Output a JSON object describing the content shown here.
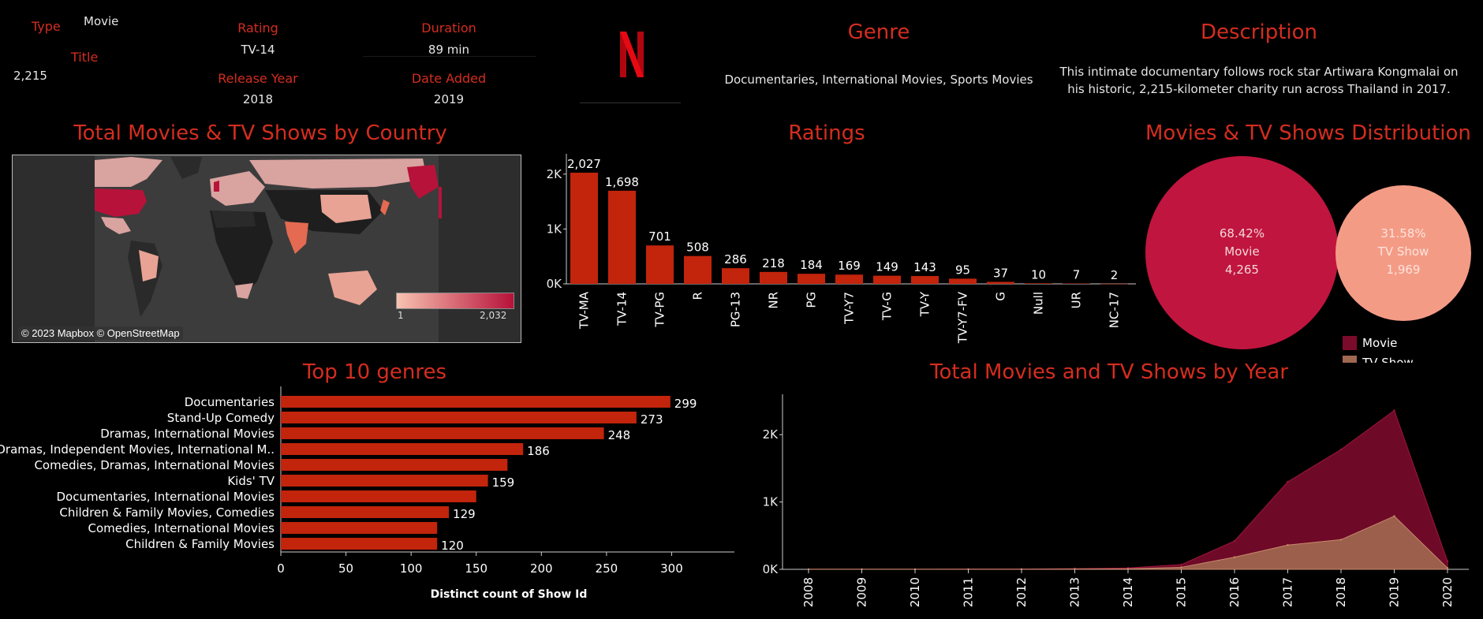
{
  "header": {
    "type_label": "Type",
    "type_value": "Movie",
    "title_label": "Title",
    "count_value": "2,215",
    "rating_label": "Rating",
    "rating_value": "TV-14",
    "duration_label": "Duration",
    "duration_value": "89 min",
    "release_label": "Release Year",
    "release_value": "2018",
    "added_label": "Date Added",
    "added_value": "2019",
    "genre_title": "Genre",
    "genre_value": "Documentaries, International Movies, Sports Movies",
    "desc_title": "Description",
    "desc_value": "This intimate documentary follows rock star Artiwara Kongmalai on his historic, 2,215-kilometer charity run across Thailand in 2017."
  },
  "map": {
    "title": "Total Movies & TV Shows by Country",
    "attribution": "© 2023 Mapbox © OpenStreetMap",
    "legend_min": "1",
    "legend_max": "2,032",
    "colors": {
      "low": "#f8c2b0",
      "high": "#b7123a"
    }
  },
  "colors": {
    "bar": "#c2240c",
    "movie": "#c0153f",
    "tvshow": "#f49b86",
    "movie_area": "#7a0b2b",
    "tv_area": "#a06850"
  },
  "chart_data": [
    {
      "type": "bar",
      "title": "Ratings",
      "ylim": [
        0,
        2300
      ],
      "yticks": [
        {
          "v": 0,
          "t": "0K"
        },
        {
          "v": 1000,
          "t": "1K"
        },
        {
          "v": 2000,
          "t": "2K"
        }
      ],
      "categories": [
        "TV-MA",
        "TV-14",
        "TV-PG",
        "R",
        "PG-13",
        "NR",
        "PG",
        "TV-Y7",
        "TV-G",
        "TV-Y",
        "TV-Y7-FV",
        "G",
        "Null",
        "UR",
        "NC-17"
      ],
      "values": [
        2027,
        1698,
        701,
        508,
        286,
        218,
        184,
        169,
        149,
        143,
        95,
        37,
        10,
        7,
        2
      ],
      "labels": [
        "2,027",
        "1,698",
        "701",
        "508",
        "286",
        "218",
        "184",
        "169",
        "149",
        "143",
        "95",
        "37",
        "10",
        "7",
        "2"
      ]
    },
    {
      "type": "bubble",
      "title": "Movies & TV Shows Distribution",
      "items": [
        {
          "name": "Movie",
          "pct": "68.42%",
          "count": "4,265",
          "value": 4265
        },
        {
          "name": "TV Show",
          "pct": "31.58%",
          "count": "1,969",
          "value": 1969
        }
      ],
      "legend": [
        "Movie",
        "TV Show"
      ]
    },
    {
      "type": "bar-horizontal",
      "title": "Top 10 genres",
      "xlabel": "Distinct count of Show Id",
      "xlim": [
        0,
        330
      ],
      "xticks": [
        0,
        50,
        100,
        150,
        200,
        250,
        300
      ],
      "categories": [
        "Documentaries",
        "Stand-Up Comedy",
        "Dramas, International Movies",
        "Dramas, Independent Movies, International M..",
        "Comedies, Dramas, International Movies",
        "Kids' TV",
        "Documentaries, International Movies",
        "Children & Family Movies, Comedies",
        "Comedies, International Movies",
        "Children & Family Movies"
      ],
      "values": [
        299,
        273,
        248,
        186,
        174,
        159,
        150,
        129,
        120,
        120
      ],
      "labels": [
        "299",
        "273",
        "248",
        "186",
        "",
        "159",
        "",
        "129",
        "",
        "120"
      ]
    },
    {
      "type": "area",
      "title": "Total Movies and TV Shows by Year",
      "ylim": [
        0,
        2600
      ],
      "yticks": [
        {
          "v": 0,
          "t": "0K"
        },
        {
          "v": 1000,
          "t": "1K"
        },
        {
          "v": 2000,
          "t": "2K"
        }
      ],
      "x": [
        "2008",
        "2009",
        "2010",
        "2011",
        "2012",
        "2013",
        "2014",
        "2015",
        "2016",
        "2017",
        "2018",
        "2019",
        "2020"
      ],
      "series": [
        {
          "name": "Movie",
          "values": [
            2,
            2,
            2,
            5,
            5,
            10,
            20,
            70,
            420,
            1300,
            1780,
            2360,
            120
          ]
        },
        {
          "name": "TV Show",
          "values": [
            1,
            1,
            1,
            1,
            2,
            5,
            8,
            30,
            180,
            360,
            440,
            790,
            20
          ]
        }
      ]
    }
  ]
}
